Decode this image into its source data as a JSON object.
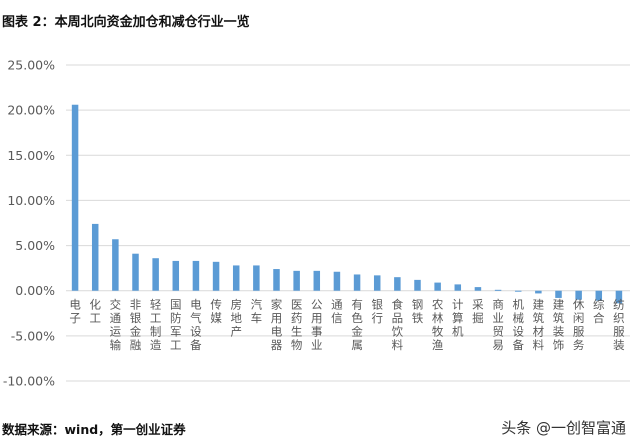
{
  "title": "图表 2：本周北向资金加仓和减仓行业一览",
  "source": "数据来源：wind，第一创业证券",
  "watermark": "头条 @一创智富通",
  "colors": {
    "bar": "#5B9BD5",
    "grid": "#D9D9D9",
    "axis_text": "#595959"
  },
  "chart_data": {
    "type": "bar",
    "title": "本周北向资金加仓和减仓行业一览",
    "xlabel": "",
    "ylabel": "",
    "ylim": [
      -0.1,
      0.25
    ],
    "yticks": [
      "25.00%",
      "20.00%",
      "15.00%",
      "10.00%",
      "5.00%",
      "0.00%",
      "-5.00%",
      "-10.00%"
    ],
    "ytick_values": [
      0.25,
      0.2,
      0.15,
      0.1,
      0.05,
      0.0,
      -0.05,
      -0.1
    ],
    "grid": true,
    "legend": "none",
    "categories": [
      "电子",
      "化工",
      "交通运输",
      "非银金融",
      "轻工制造",
      "国防军工",
      "电气设备",
      "传媒",
      "房地产",
      "汽车",
      "家用电器",
      "医药生物",
      "公用事业",
      "通信",
      "有色金属",
      "银行",
      "食品饮料",
      "钢铁",
      "农林牧渔",
      "计算机",
      "采掘",
      "商业贸易",
      "机械设备",
      "建筑材料",
      "建筑装饰",
      "休闲服务",
      "综合",
      "纺织服装"
    ],
    "values": [
      0.206,
      0.074,
      0.057,
      0.041,
      0.036,
      0.033,
      0.033,
      0.032,
      0.028,
      0.028,
      0.024,
      0.022,
      0.022,
      0.021,
      0.018,
      0.017,
      0.015,
      0.012,
      0.009,
      0.007,
      0.004,
      0.001,
      -0.001,
      -0.003,
      -0.008,
      -0.01,
      -0.011,
      -0.014
    ]
  }
}
